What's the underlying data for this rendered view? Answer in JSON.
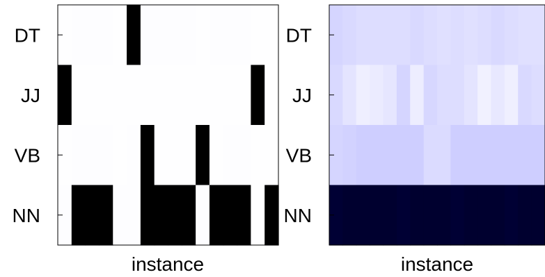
{
  "chart_data": [
    {
      "type": "heatmap",
      "title": "",
      "xlabel": "instance",
      "ylabel": "",
      "rows": [
        "DT",
        "JJ",
        "VB",
        "NN"
      ],
      "colormap": {
        "low": "#ffffff",
        "high": "#000000",
        "mid": "#00003a"
      },
      "grid": false,
      "values": [
        [
          0.02,
          0.05,
          0.05,
          0.05,
          0.02,
          1.0,
          0.05,
          0.05,
          0.05,
          0.05,
          0.02,
          0.05,
          0.05,
          0.05,
          0.02,
          0.02
        ],
        [
          1.0,
          0.02,
          0.02,
          0.02,
          0.02,
          0.02,
          0.02,
          0.02,
          0.02,
          0.02,
          0.02,
          0.02,
          0.02,
          0.02,
          1.0,
          0.02
        ],
        [
          0.02,
          0.05,
          0.05,
          0.05,
          0.02,
          0.05,
          1.0,
          0.02,
          0.02,
          0.02,
          1.0,
          0.02,
          0.05,
          0.05,
          0.02,
          0.02
        ],
        [
          0.05,
          1.0,
          1.0,
          1.0,
          0.05,
          0.05,
          1.0,
          1.0,
          1.0,
          1.0,
          0.05,
          1.0,
          1.0,
          1.0,
          0.02,
          1.0
        ]
      ]
    },
    {
      "type": "heatmap",
      "title": "",
      "xlabel": "instance",
      "ylabel": "",
      "rows": [
        "DT",
        "JJ",
        "VB",
        "NN"
      ],
      "colormap": {
        "low": "#ffffff",
        "high": "#000030"
      },
      "grid": false,
      "values": [
        [
          0.17,
          0.15,
          0.13,
          0.13,
          0.13,
          0.13,
          0.15,
          0.13,
          0.12,
          0.13,
          0.12,
          0.13,
          0.15,
          0.13,
          0.12,
          0.12
        ],
        [
          0.15,
          0.1,
          0.05,
          0.07,
          0.09,
          0.17,
          0.06,
          0.16,
          0.13,
          0.13,
          0.1,
          0.04,
          0.08,
          0.05,
          0.15,
          0.13
        ],
        [
          0.17,
          0.18,
          0.2,
          0.2,
          0.2,
          0.2,
          0.2,
          0.14,
          0.14,
          0.2,
          0.2,
          0.2,
          0.2,
          0.2,
          0.2,
          0.2
        ],
        [
          0.95,
          0.97,
          0.97,
          0.97,
          0.97,
          0.95,
          0.97,
          0.97,
          0.97,
          0.95,
          0.97,
          0.97,
          0.97,
          0.95,
          0.97,
          0.97
        ]
      ]
    }
  ]
}
